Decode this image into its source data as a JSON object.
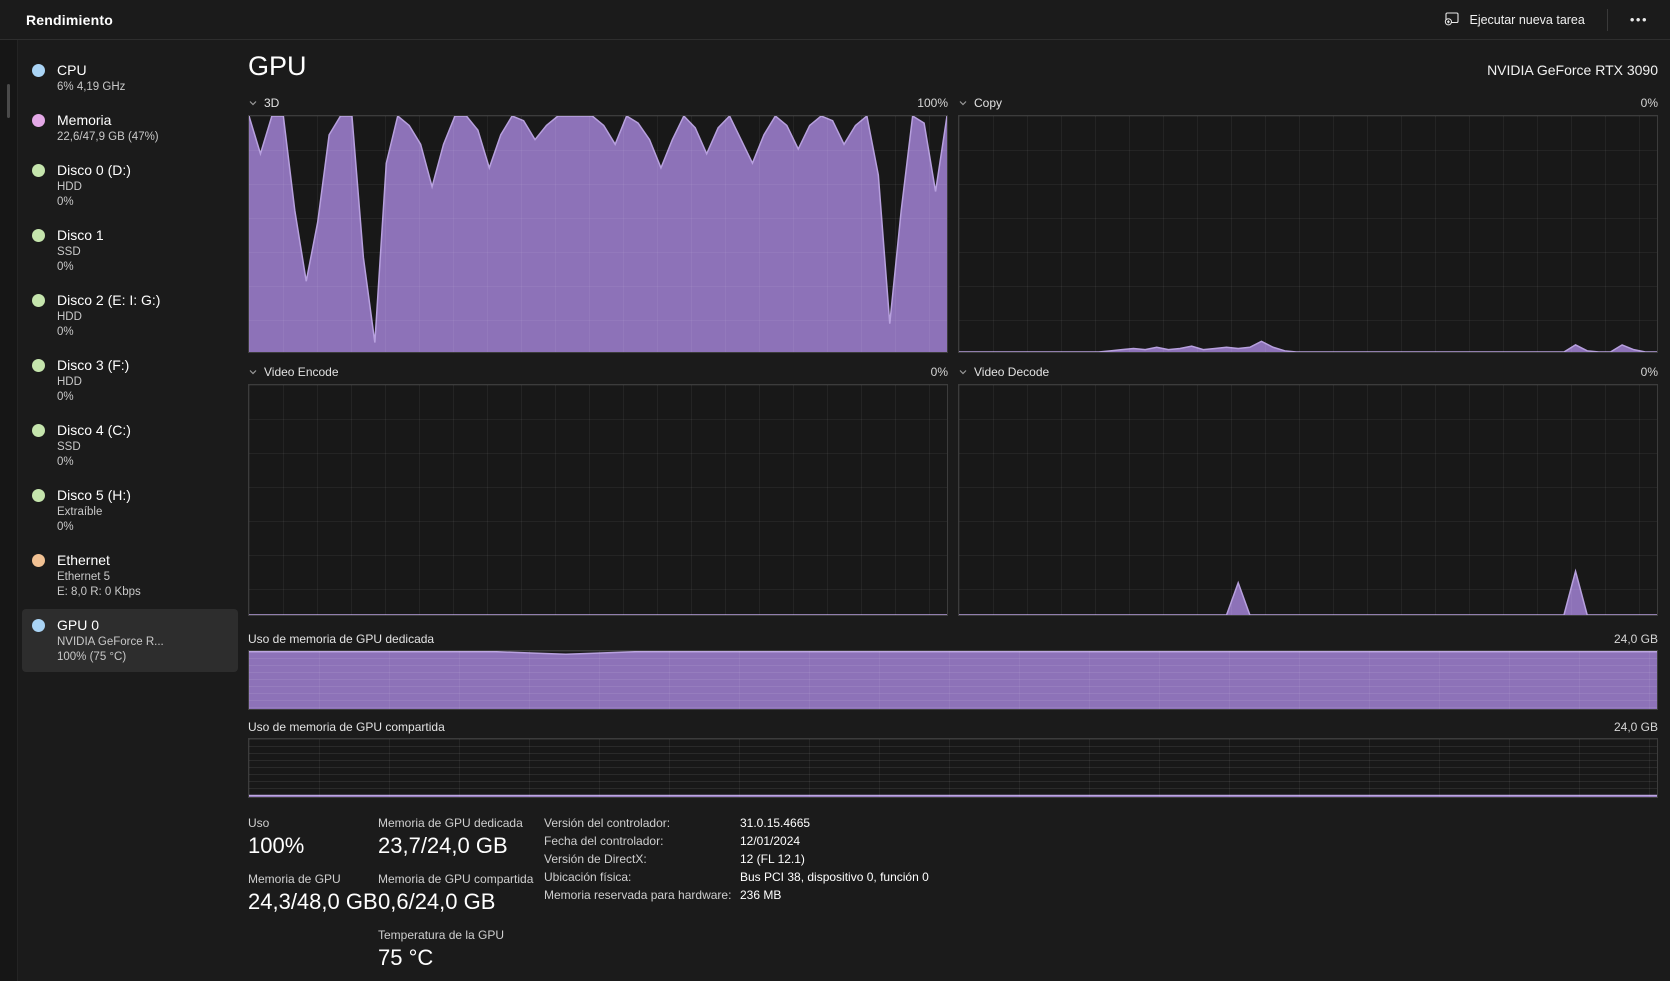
{
  "window": {
    "tab_title": "Rendimiento",
    "run_task_label": "Ejecutar nueva tarea",
    "more_label": "•••"
  },
  "colors": {
    "accent_fill": "#8d72b8",
    "accent_stroke": "#b7a0de",
    "selected_item_bg": "#2d2d2d",
    "dot_cpu": "#aad4f5",
    "dot_memory": "#e3a8e6",
    "dot_disk": "#c5e5ad",
    "dot_ethernet": "#f1c193",
    "dot_gpu": "#aad4f5"
  },
  "sidebar": {
    "items": [
      {
        "title": "CPU",
        "lines": [
          "6% 4,19 GHz"
        ],
        "dot": "#aad4f5",
        "selected": false
      },
      {
        "title": "Memoria",
        "lines": [
          "22,6/47,9 GB (47%)"
        ],
        "dot": "#e3a8e6",
        "selected": false
      },
      {
        "title": "Disco 0 (D:)",
        "lines": [
          "HDD",
          "0%"
        ],
        "dot": "#c5e5ad",
        "selected": false
      },
      {
        "title": "Disco 1",
        "lines": [
          "SSD",
          "0%"
        ],
        "dot": "#c5e5ad",
        "selected": false
      },
      {
        "title": "Disco 2 (E: I: G:)",
        "lines": [
          "HDD",
          "0%"
        ],
        "dot": "#c5e5ad",
        "selected": false
      },
      {
        "title": "Disco 3 (F:)",
        "lines": [
          "HDD",
          "0%"
        ],
        "dot": "#c5e5ad",
        "selected": false
      },
      {
        "title": "Disco 4 (C:)",
        "lines": [
          "SSD",
          "0%"
        ],
        "dot": "#c5e5ad",
        "selected": false
      },
      {
        "title": "Disco 5 (H:)",
        "lines": [
          "Extraíble",
          "0%"
        ],
        "dot": "#c5e5ad",
        "selected": false
      },
      {
        "title": "Ethernet",
        "lines": [
          "Ethernet 5",
          "E: 8,0 R: 0 Kbps"
        ],
        "dot": "#f1c193",
        "selected": false
      },
      {
        "title": "GPU 0",
        "lines": [
          "NVIDIA GeForce R...",
          "100% (75 °C)"
        ],
        "dot": "#aad4f5",
        "selected": true
      }
    ]
  },
  "main": {
    "title": "GPU",
    "device": "NVIDIA GeForce RTX 3090",
    "charts": {
      "d3": {
        "label": "3D",
        "value": "100%",
        "series": [
          100,
          84,
          100,
          100,
          60,
          30,
          55,
          92,
          100,
          100,
          40,
          4,
          80,
          100,
          96,
          88,
          70,
          88,
          100,
          100,
          94,
          78,
          92,
          100,
          98,
          90,
          96,
          100,
          100,
          100,
          100,
          96,
          88,
          100,
          97,
          90,
          78,
          90,
          100,
          95,
          84,
          95,
          100,
          90,
          80,
          92,
          100,
          96,
          86,
          96,
          100,
          98,
          88,
          96,
          100,
          75,
          12,
          60,
          100,
          97,
          68,
          100
        ]
      },
      "copy": {
        "label": "Copy",
        "value": "0%",
        "series": [
          0,
          0,
          0,
          0,
          0,
          0,
          0,
          0,
          0,
          0,
          0,
          0,
          0,
          0.5,
          1,
          1.5,
          1,
          2,
          1,
          1.5,
          2.5,
          1,
          1.5,
          2,
          1.5,
          2,
          4.5,
          2,
          0.5,
          0,
          0,
          0,
          0,
          0,
          0,
          0,
          0,
          0,
          0,
          0,
          0,
          0,
          0,
          0,
          0,
          0,
          0,
          0,
          0,
          0,
          0,
          0,
          0,
          3,
          0.5,
          0,
          0,
          3,
          1,
          0,
          0
        ]
      },
      "video_encode": {
        "label": "Video Encode",
        "value": "0%",
        "series": [
          0,
          0
        ]
      },
      "video_decode": {
        "label": "Video Decode",
        "value": "0%",
        "series": [
          0,
          0,
          0,
          0,
          0,
          0,
          0,
          0,
          0,
          0,
          0,
          0,
          0,
          0,
          0,
          0,
          0,
          0,
          0,
          0,
          0,
          0,
          0,
          0,
          14,
          0,
          0,
          0,
          0,
          0,
          0,
          0,
          0,
          0,
          0,
          0,
          0,
          0,
          0,
          0,
          0,
          0,
          0,
          0,
          0,
          0,
          0,
          0,
          0,
          0,
          0,
          0,
          0,
          19,
          0,
          0,
          0,
          0,
          0,
          0,
          0
        ]
      },
      "mem_dedicated": {
        "label": "Uso de memoria de GPU dedicada",
        "value": "24,0 GB",
        "series": [
          98.8,
          98.8,
          98.8,
          98.8,
          98.8,
          98.8,
          98.8,
          98.8,
          96.5,
          94.5,
          96.5,
          98.8,
          98.8,
          98.8,
          98.8,
          98.8,
          98.8,
          98.8,
          98.8,
          98.8,
          98.8,
          98.8,
          98.8,
          98.8,
          98.8,
          98.8,
          98.8,
          98.8,
          98.8,
          98.8,
          98.8,
          98.8,
          98.8,
          98.8,
          98.8,
          98.8,
          98.8,
          98.8,
          98.8,
          98.8,
          98.8
        ]
      },
      "mem_shared": {
        "label": "Uso de memoria de GPU compartida",
        "value": "24,0 GB",
        "series": [
          2.5,
          2.5
        ]
      }
    },
    "stats": {
      "col1": [
        {
          "label": "Uso",
          "value": "100%"
        },
        {
          "label": "Memoria de GPU",
          "value": "24,3/48,0 GB"
        }
      ],
      "col2": [
        {
          "label": "Memoria de GPU dedicada",
          "value": "23,7/24,0 GB"
        },
        {
          "label": "Memoria de GPU compartida",
          "value": "0,6/24,0 GB"
        },
        {
          "label": "Temperatura de la GPU",
          "value": "75 °C"
        }
      ],
      "details": [
        {
          "label": "Versión del controlador:",
          "value": "31.0.15.4665"
        },
        {
          "label": "Fecha del controlador:",
          "value": "12/01/2024"
        },
        {
          "label": "Versión de DirectX:",
          "value": "12 (FL 12.1)"
        },
        {
          "label": "Ubicación física:",
          "value": "Bus PCI 38, dispositivo 0, función 0"
        },
        {
          "label": "Memoria reservada para hardware:",
          "value": "236 MB"
        }
      ]
    }
  }
}
